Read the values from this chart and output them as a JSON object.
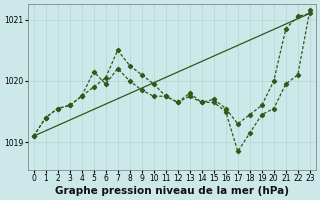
{
  "bg_color": "#cce8e8",
  "grid_color": "#b8d8d8",
  "line_color": "#2d5a1b",
  "title": "Graphe pression niveau de la mer (hPa)",
  "title_fontsize": 7.5,
  "xlim": [
    -0.5,
    23.5
  ],
  "ylim": [
    1018.55,
    1021.25
  ],
  "yticks": [
    1019,
    1020,
    1021
  ],
  "xticks": [
    0,
    1,
    2,
    3,
    4,
    5,
    6,
    7,
    8,
    9,
    10,
    11,
    12,
    13,
    14,
    15,
    16,
    17,
    18,
    19,
    20,
    21,
    22,
    23
  ],
  "series1_x": [
    0,
    23
  ],
  "series1_y": [
    1019.1,
    1021.1
  ],
  "series2_x": [
    0,
    1,
    2,
    3,
    4,
    5,
    6,
    7,
    8,
    9,
    10,
    11,
    12,
    13,
    14,
    15,
    16,
    17,
    18,
    19,
    20,
    21,
    22,
    23
  ],
  "series2_y": [
    1019.1,
    1019.4,
    1019.55,
    1019.6,
    1019.75,
    1019.9,
    1020.05,
    1020.5,
    1020.25,
    1020.1,
    1019.95,
    1019.75,
    1019.65,
    1019.75,
    1019.65,
    1019.7,
    1019.55,
    1019.3,
    1019.45,
    1019.6,
    1020.0,
    1020.85,
    1021.05,
    1021.1
  ],
  "series3_x": [
    0,
    1,
    2,
    3,
    4,
    5,
    6,
    7,
    8,
    9,
    10,
    11,
    12,
    13,
    14,
    15,
    16,
    17,
    18,
    19,
    20,
    21,
    22,
    23
  ],
  "series3_y": [
    1019.1,
    1019.4,
    1019.55,
    1019.6,
    1019.75,
    1020.15,
    1019.95,
    1020.2,
    1020.0,
    1019.85,
    1019.75,
    1019.75,
    1019.65,
    1019.8,
    1019.65,
    1019.65,
    1019.5,
    1018.85,
    1019.15,
    1019.45,
    1019.55,
    1019.95,
    1020.1,
    1021.15
  ]
}
